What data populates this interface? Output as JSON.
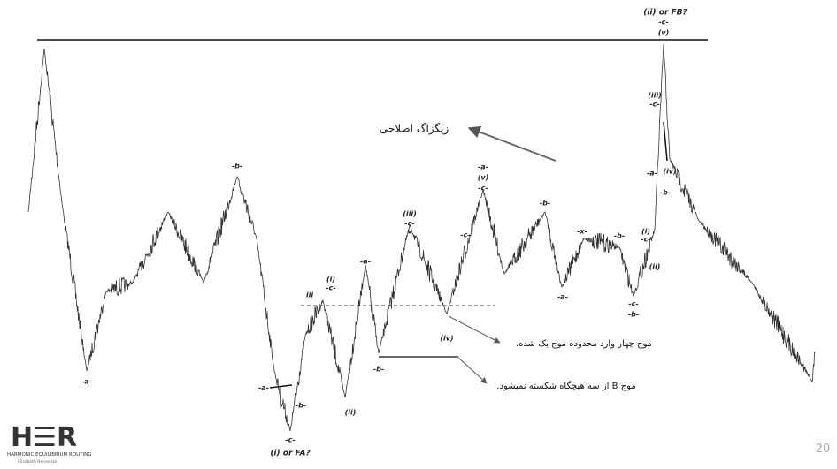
{
  "annotations": [
    "(ii) or FB?",
    "-c-",
    "(v)",
    "زیگزاگ اصلاحی",
    "موج چهار وارد محدوده موج یک شده.",
    "موج B از سه هیچگاه شکسته نمیشود.",
    "-b-",
    "-a-",
    "-c-",
    "(i) or FA?",
    "(ii)",
    "-a-",
    "(v)",
    "-c-",
    "(iii)",
    "-c-",
    "v",
    "(iv)",
    "-b-",
    "-x-",
    "-b-",
    "-b-",
    "-c-",
    "(iii)",
    "-c-",
    "(iv)",
    "-b-",
    "-a-",
    "(i)",
    "-c-",
    "(ii)",
    "(i)",
    "-c-",
    "iii",
    "-a-",
    "-b-",
    "-a-",
    "-b-",
    "-a-",
    "-c-"
  ],
  "logo": {
    "mark": "H☰R",
    "line1": "HARMONIC EQUILIBRIUM ROUTING",
    "line2": "Elizabeth Nersesian"
  },
  "page_number": "20"
}
